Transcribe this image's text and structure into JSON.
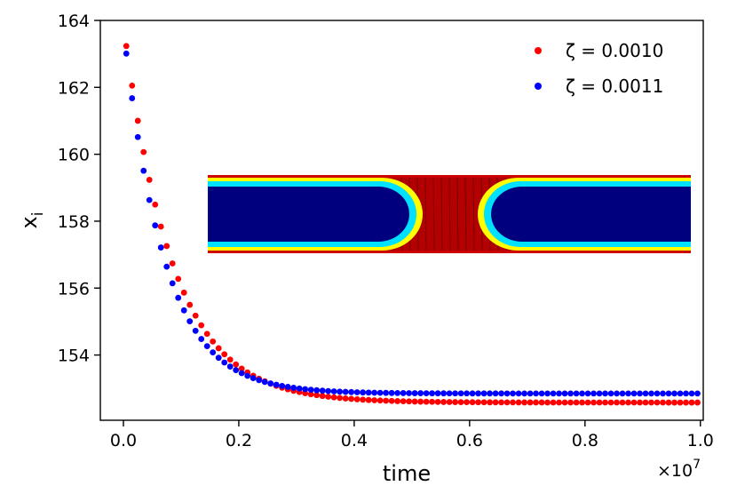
{
  "chart_data": {
    "type": "scatter",
    "xlabel": "time",
    "ylabel": "x",
    "ylabel_subscript": "i",
    "x_offset_label": "×10",
    "x_offset_exponent": "7",
    "xlim": [
      -0.04,
      1.005
    ],
    "ylim": [
      152.05,
      164.0
    ],
    "xticks": [
      0.0,
      0.2,
      0.4,
      0.6,
      0.8,
      1.0
    ],
    "xtick_labels": [
      "0.0",
      "0.2",
      "0.4",
      "0.6",
      "0.8",
      "1.0"
    ],
    "yticks": [
      154,
      156,
      158,
      160,
      162,
      164
    ],
    "ytick_labels": [
      "154",
      "156",
      "158",
      "160",
      "162",
      "164"
    ],
    "legend": {
      "placement": "top-right"
    },
    "grid": false,
    "series": [
      {
        "name": "ζ = 0.0010",
        "color": "#ff0000",
        "model": {
          "type": "exp_decay",
          "x0": 0.005,
          "dx": 0.01,
          "count": 100,
          "y_inf": 152.58,
          "amplitude": 11.3,
          "tau": 0.085
        }
      },
      {
        "name": "ζ = 0.0011",
        "color": "#0000ff",
        "model": {
          "type": "exp_decay",
          "x0": 0.005,
          "dx": 0.01,
          "count": 100,
          "y_inf": 152.85,
          "amplitude": 10.9,
          "tau": 0.071
        }
      }
    ],
    "inset": {
      "description_hidden": true,
      "bg_color": "#b30000",
      "domain_color": "#00007f"
    }
  }
}
